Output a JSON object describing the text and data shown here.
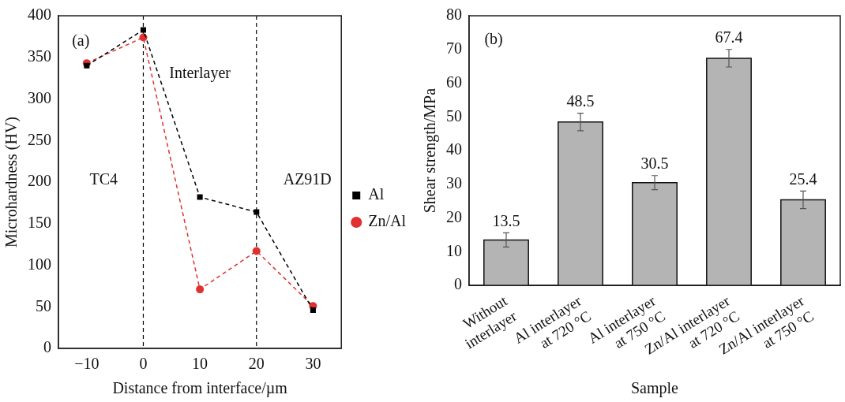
{
  "chart_data": [
    {
      "type": "line",
      "xlabel": "Distance from interface/µm",
      "ylabel": "Microhardness (HV)",
      "x": [
        -10,
        0,
        10,
        20,
        30
      ],
      "series": [
        {
          "name": "Al",
          "color": "#000000",
          "marker": "square",
          "values": [
            340,
            383,
            182,
            164,
            46
          ]
        },
        {
          "name": "Zn/Al",
          "color": "#e03030",
          "marker": "circle",
          "values": [
            343,
            374,
            71,
            117,
            51
          ]
        }
      ],
      "xlim": [
        -15,
        35
      ],
      "xticks": [
        {
          "value": -10,
          "label": "−10"
        },
        0,
        10,
        20,
        30
      ],
      "ylim": [
        0,
        400
      ],
      "yticks": [
        0,
        50,
        100,
        150,
        200,
        250,
        300,
        350,
        400
      ],
      "ref_lines": [
        {
          "axis": "x",
          "value": 0,
          "color": "#000000",
          "line_style": "dashed"
        },
        {
          "axis": "x",
          "value": 20,
          "color": "#000000",
          "line_style": "dashed"
        }
      ],
      "annotations": [
        "(a)",
        "TC4",
        "Interlayer",
        "AZ91D"
      ],
      "line_style": "dashed",
      "legend": "right",
      "grid": false
    },
    {
      "type": "bar",
      "xlabel": "Sample",
      "ylabel": "Shear strength/MPa",
      "categories": [
        "Without\ninterlayer",
        "Al interlayer\nat 720 °C",
        "Al interlayer\nat 750 °C",
        "Zn/Al interlayer\nat 720 °C",
        "Zn/Al interlayer\nat 750 °C"
      ],
      "values": [
        13.5,
        48.5,
        30.5,
        67.4,
        25.4
      ],
      "errors": [
        2.1,
        2.6,
        2.1,
        2.6,
        2.6
      ],
      "color": "#b4b4b4",
      "ylim": [
        0,
        80
      ],
      "yticks": [
        0,
        10,
        20,
        30,
        40,
        50,
        60,
        70,
        80
      ],
      "data_labels": true,
      "annotations": [
        "(b)"
      ],
      "grid": false
    }
  ]
}
